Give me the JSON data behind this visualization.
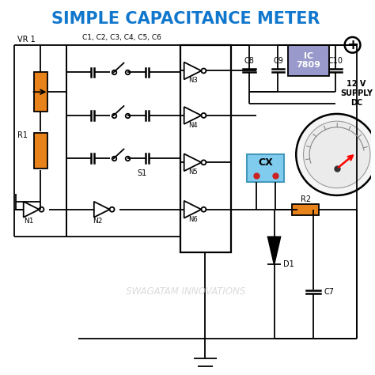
{
  "title": "SIMPLE CAPACITANCE METER",
  "title_color": "#1177CC",
  "title_fontsize": 15,
  "bg_color": "#FFFFFF",
  "line_color": "#000000",
  "orange_color": "#E8821A",
  "blue_color": "#9999CC",
  "cx_color": "#80CCEE",
  "watermark": "SWAGATAM INNOVATIONS",
  "watermark_color": "#CCCCCC",
  "supply_text": "12 V\nSUPPLY\nDC"
}
